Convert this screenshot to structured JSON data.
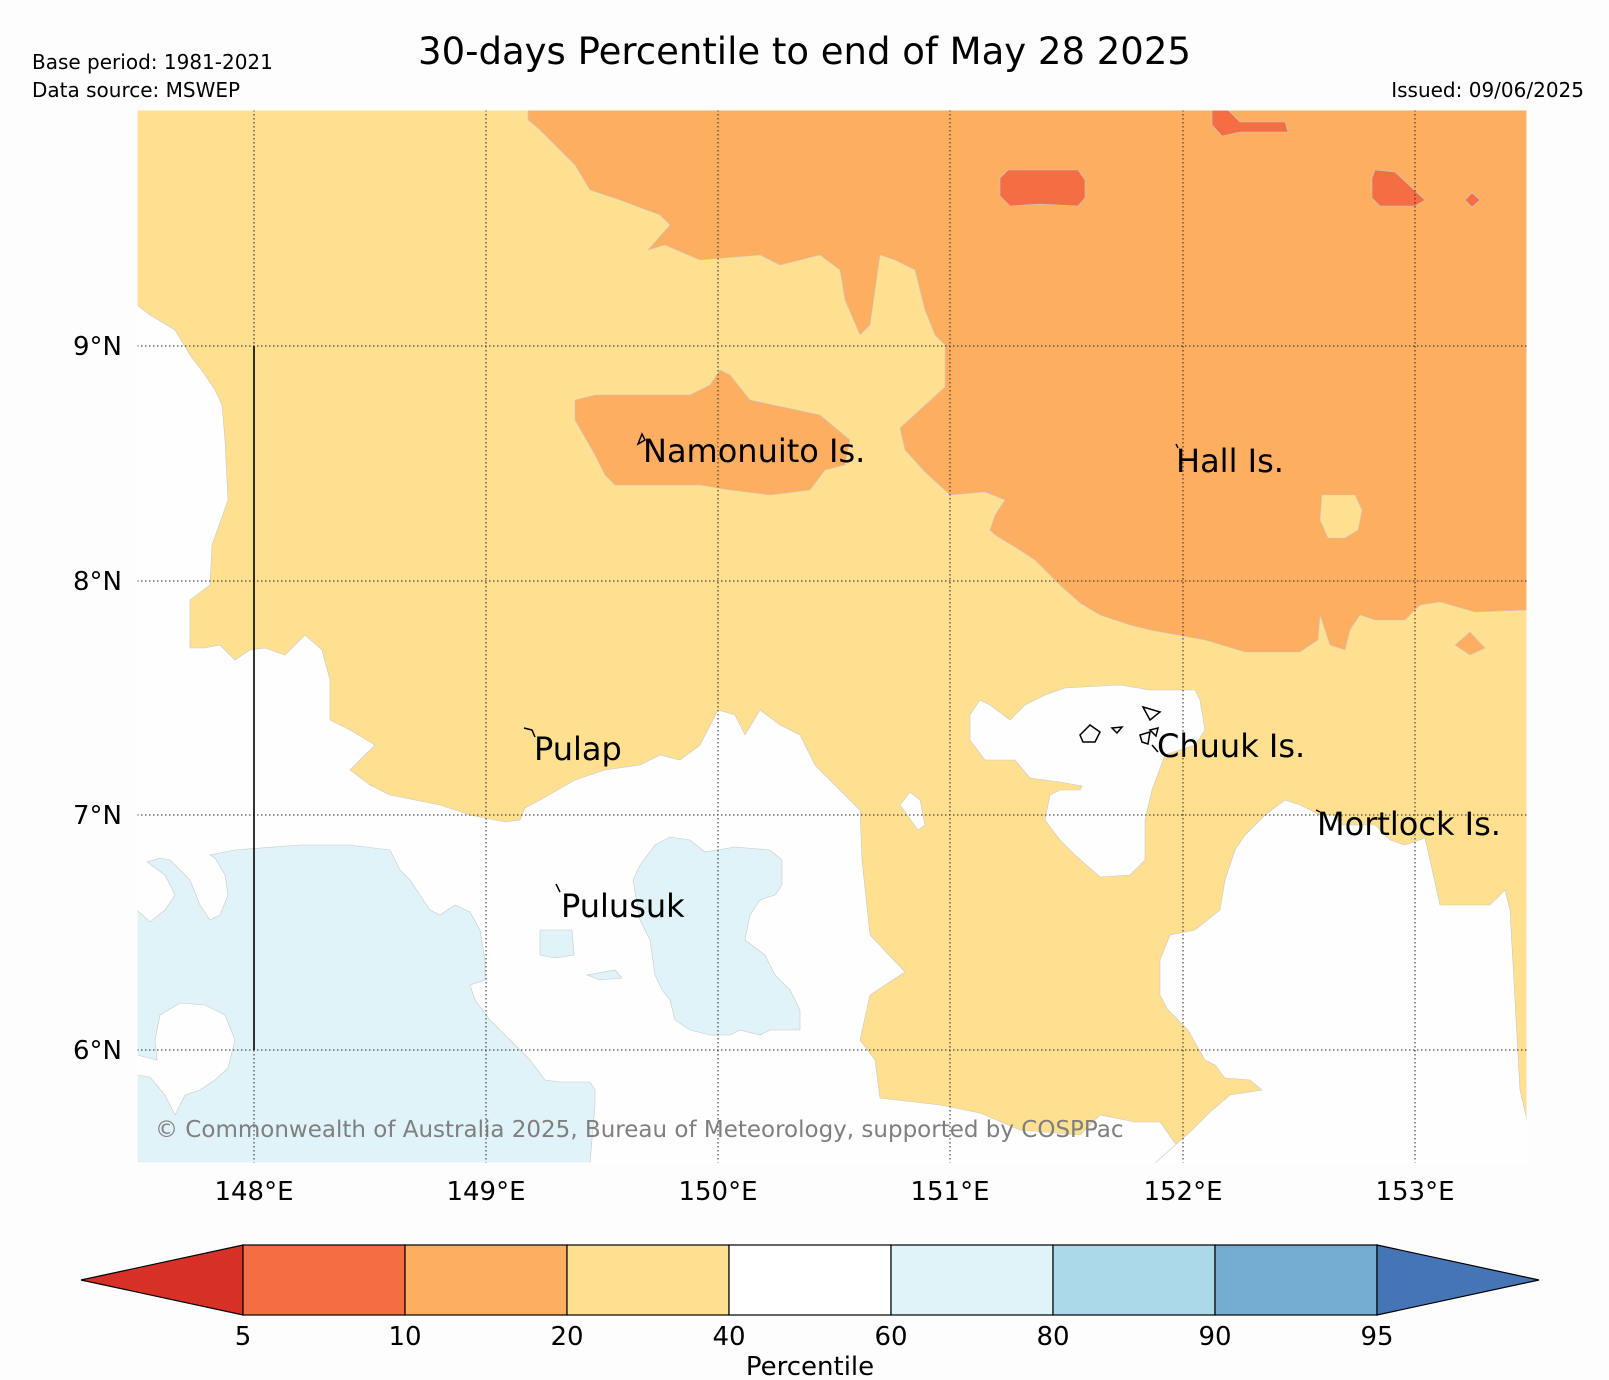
{
  "header": {
    "title": "30-days Percentile to end of May 28 2025",
    "base_period": "Base period: 1981-2021",
    "data_source": "Data source: MSWEP",
    "issued": "Issued: 09/06/2025"
  },
  "map": {
    "lat_labels": [
      "9°N",
      "8°N",
      "7°N",
      "6°N"
    ],
    "lon_labels": [
      "148°E",
      "149°E",
      "150°E",
      "151°E",
      "152°E",
      "153°E"
    ],
    "places": {
      "namonuito": "Namonuito Is.",
      "hall": "Hall Is.",
      "pulap": "Pulap",
      "chuuk": "Chuuk Is.",
      "mortlock": "Mortlock Is.",
      "pulusuk": "Pulusuk"
    },
    "copyright": "© Commonwealth of Australia 2025, Bureau of Meteorology, supported by COSPPac"
  },
  "colorbar": {
    "title": "Percentile",
    "ticks": [
      "5",
      "10",
      "20",
      "40",
      "60",
      "80",
      "90",
      "95"
    ],
    "colors": [
      "#d73027",
      "#f46d43",
      "#fdae61",
      "#fee090",
      "#ffffff",
      "#e0f3f8",
      "#abd9e9",
      "#74add1",
      "#4575b4"
    ]
  }
}
